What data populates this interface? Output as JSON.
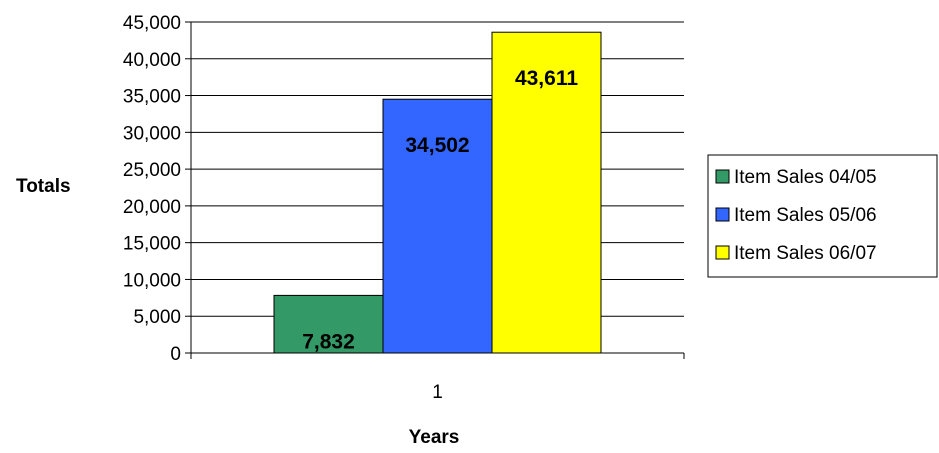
{
  "chart_data": {
    "type": "bar",
    "categories": [
      "1"
    ],
    "series": [
      {
        "name": "Item Sales 04/05",
        "values": [
          7832
        ],
        "value_label": "7,832",
        "color": "#339966"
      },
      {
        "name": "Item Sales 05/06",
        "values": [
          34502
        ],
        "value_label": "34,502",
        "color": "#3366FF"
      },
      {
        "name": "Item Sales 06/07",
        "values": [
          43611
        ],
        "value_label": "43,611",
        "color": "#FFFF00"
      }
    ],
    "xlabel": "Years",
    "ylabel": "Totals",
    "ylim": [
      0,
      45000
    ],
    "yticks": [
      0,
      5000,
      10000,
      15000,
      20000,
      25000,
      30000,
      35000,
      40000,
      45000
    ],
    "ytick_labels": [
      "0",
      "5,000",
      "10,000",
      "15,000",
      "20,000",
      "25,000",
      "30,000",
      "35,000",
      "40,000",
      "45,000"
    ],
    "grid": true,
    "legend_position": "right"
  }
}
